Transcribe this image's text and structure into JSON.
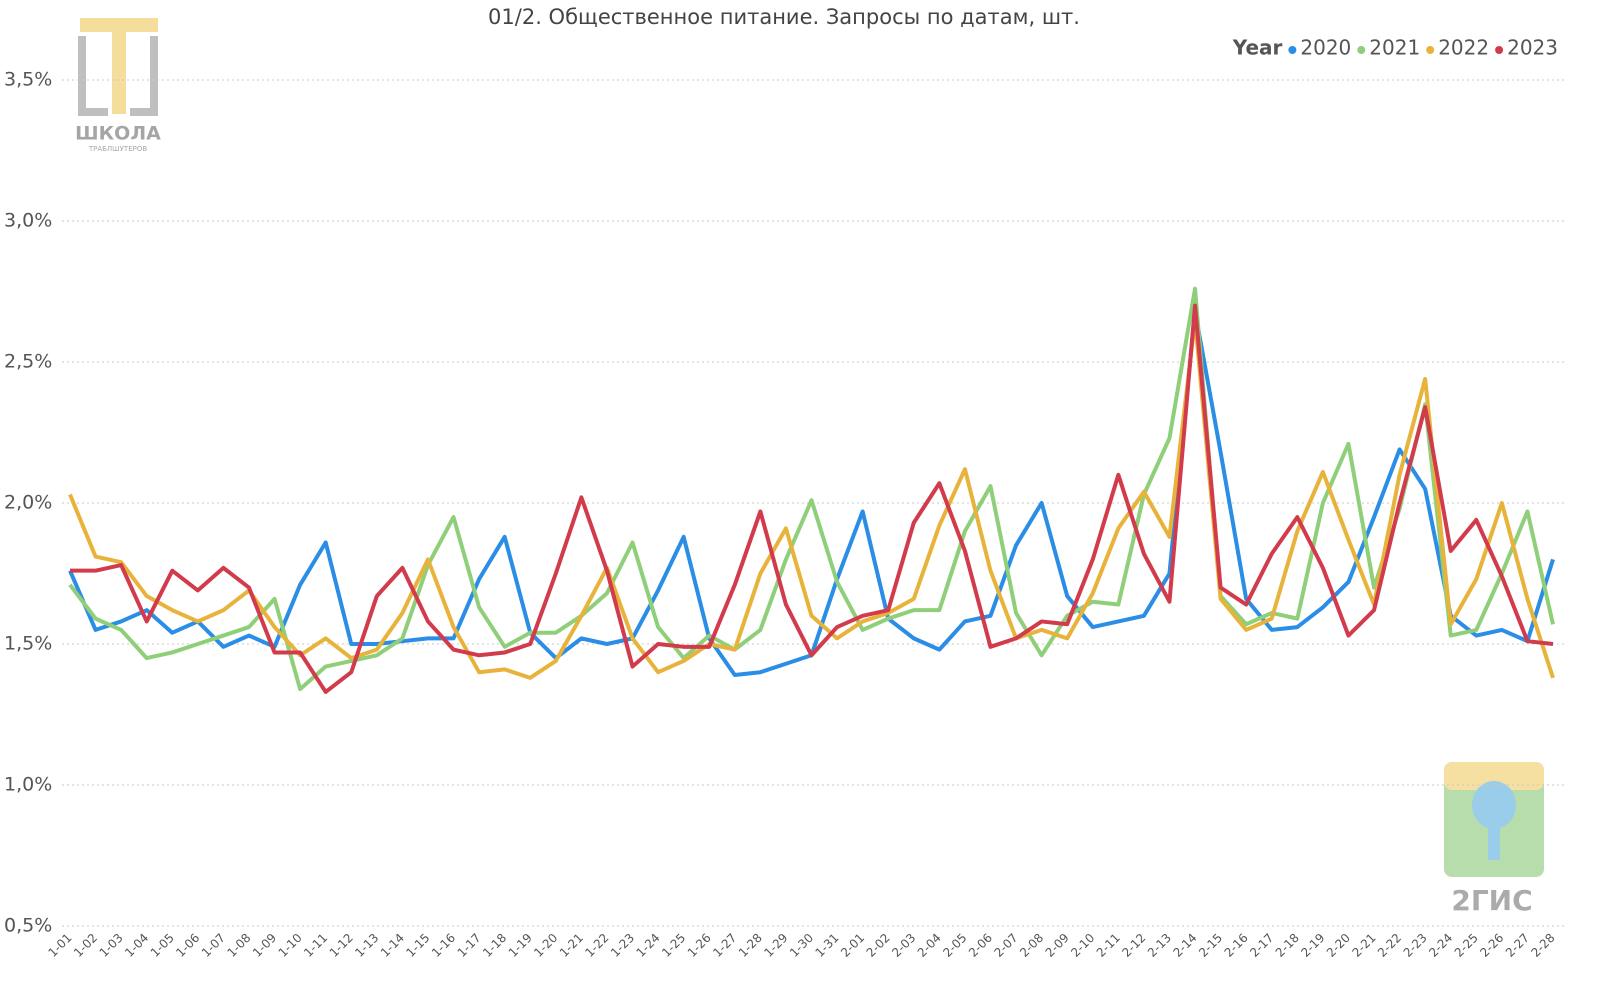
{
  "chart_data": {
    "type": "line",
    "title": "01/2. Общественное питание. Запросы по датам, шт.",
    "legend_title": "Year",
    "legend_position": "top-right",
    "grid": true,
    "categories": [
      "1-01",
      "1-02",
      "1-03",
      "1-04",
      "1-05",
      "1-06",
      "1-07",
      "1-08",
      "1-09",
      "1-10",
      "1-11",
      "1-12",
      "1-13",
      "1-14",
      "1-15",
      "1-16",
      "1-17",
      "1-18",
      "1-19",
      "1-20",
      "1-21",
      "1-22",
      "1-23",
      "1-24",
      "1-25",
      "1-26",
      "1-27",
      "1-28",
      "1-29",
      "1-30",
      "1-31",
      "2-01",
      "2-02",
      "2-03",
      "2-04",
      "2-05",
      "2-06",
      "2-07",
      "2-08",
      "2-09",
      "2-10",
      "2-11",
      "2-12",
      "2-13",
      "2-14",
      "2-15",
      "2-16",
      "2-17",
      "2-18",
      "2-19",
      "2-20",
      "2-21",
      "2-22",
      "2-23",
      "2-24",
      "2-25",
      "2-26",
      "2-27",
      "2-28"
    ],
    "ylim": [
      0.5,
      3.7
    ],
    "yticks": [
      {
        "value": 0.5,
        "label": "0,5%"
      },
      {
        "value": 1.0,
        "label": "1,0%"
      },
      {
        "value": 1.5,
        "label": "1,5%"
      },
      {
        "value": 2.0,
        "label": "2,0%"
      },
      {
        "value": 2.5,
        "label": "2,5%"
      },
      {
        "value": 3.0,
        "label": "3,0%"
      },
      {
        "value": 3.5,
        "label": "3,5%"
      }
    ],
    "series": [
      {
        "name": "2020",
        "color": "#2a8de6",
        "values": [
          1.76,
          1.55,
          1.58,
          1.62,
          1.54,
          1.58,
          1.49,
          1.53,
          1.49,
          1.71,
          1.86,
          1.5,
          1.5,
          1.51,
          1.52,
          1.52,
          1.73,
          1.88,
          1.54,
          1.45,
          1.52,
          1.5,
          1.52,
          1.69,
          1.88,
          1.52,
          1.39,
          1.4,
          1.43,
          1.46,
          1.73,
          1.97,
          1.59,
          1.52,
          1.48,
          1.58,
          1.6,
          1.85,
          2.0,
          1.67,
          1.56,
          1.58,
          1.6,
          1.75,
          2.68,
          2.18,
          1.66,
          1.55,
          1.56,
          1.63,
          1.72,
          1.95,
          2.19,
          2.05,
          1.6,
          1.53,
          1.55,
          1.51,
          1.8
        ]
      },
      {
        "name": "2021",
        "color": "#8fcf7a",
        "values": [
          1.71,
          1.59,
          1.55,
          1.45,
          1.47,
          1.5,
          1.53,
          1.56,
          1.66,
          1.34,
          1.42,
          1.44,
          1.46,
          1.52,
          1.78,
          1.95,
          1.63,
          1.49,
          1.54,
          1.54,
          1.6,
          1.68,
          1.86,
          1.56,
          1.45,
          1.53,
          1.48,
          1.55,
          1.8,
          2.01,
          1.72,
          1.55,
          1.59,
          1.62,
          1.62,
          1.9,
          2.06,
          1.61,
          1.46,
          1.6,
          1.65,
          1.64,
          2.03,
          2.23,
          2.76,
          1.67,
          1.57,
          1.61,
          1.59,
          2.0,
          2.21,
          1.7,
          1.98,
          2.35,
          1.53,
          1.55,
          1.75,
          1.97,
          1.57
        ]
      },
      {
        "name": "2022",
        "color": "#e8b33a",
        "values": [
          2.03,
          1.81,
          1.79,
          1.67,
          1.62,
          1.58,
          1.62,
          1.69,
          1.56,
          1.46,
          1.52,
          1.45,
          1.48,
          1.61,
          1.8,
          1.56,
          1.4,
          1.41,
          1.38,
          1.44,
          1.6,
          1.77,
          1.52,
          1.4,
          1.44,
          1.5,
          1.48,
          1.75,
          1.91,
          1.6,
          1.52,
          1.58,
          1.61,
          1.66,
          1.92,
          2.12,
          1.76,
          1.52,
          1.55,
          1.52,
          1.68,
          1.91,
          2.04,
          1.88,
          2.65,
          1.66,
          1.55,
          1.59,
          1.9,
          2.11,
          1.87,
          1.64,
          2.1,
          2.44,
          1.57,
          1.73,
          2.0,
          1.66,
          1.38
        ]
      },
      {
        "name": "2023",
        "color": "#d23b4c",
        "values": [
          1.76,
          1.76,
          1.78,
          1.58,
          1.76,
          1.69,
          1.77,
          1.7,
          1.47,
          1.47,
          1.33,
          1.4,
          1.67,
          1.77,
          1.58,
          1.48,
          1.46,
          1.47,
          1.5,
          1.75,
          2.02,
          1.76,
          1.42,
          1.5,
          1.49,
          1.49,
          1.71,
          1.97,
          1.64,
          1.46,
          1.56,
          1.6,
          1.62,
          1.93,
          2.07,
          1.83,
          1.49,
          1.52,
          1.58,
          1.57,
          1.8,
          2.1,
          1.82,
          1.65,
          2.7,
          1.7,
          1.64,
          1.82,
          1.95,
          1.77,
          1.53,
          1.62,
          2.0,
          2.34,
          1.83,
          1.94,
          1.74,
          1.51,
          1.5
        ]
      }
    ]
  },
  "logos": {
    "school_name": "ШКОЛА",
    "school_sub": "ТРАБЛШУТЕРОВ",
    "gis": "2ГИС"
  }
}
